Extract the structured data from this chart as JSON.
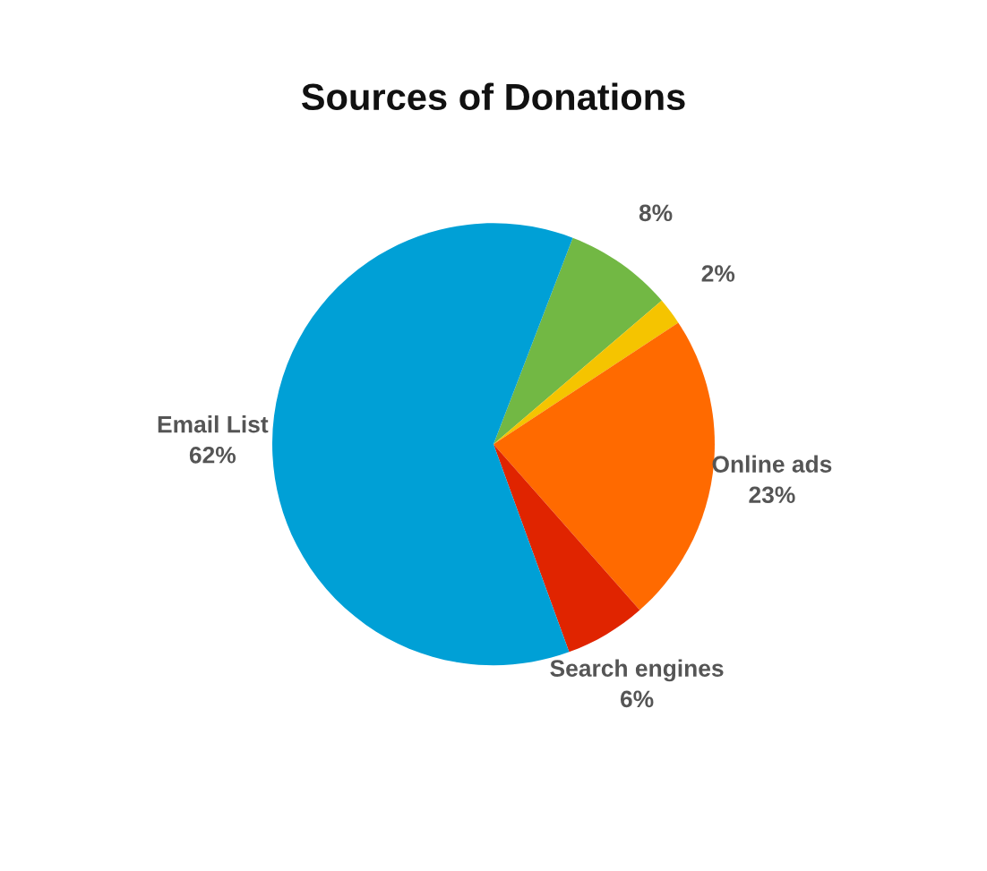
{
  "chart_data": {
    "type": "pie",
    "title": "Sources of Donations",
    "categories": [
      null,
      null,
      "Online ads",
      "Search engines",
      "Email List"
    ],
    "values": [
      8,
      2,
      23,
      6,
      62
    ],
    "value_labels": [
      "8%",
      "2%",
      "23%",
      "6%",
      "62%"
    ],
    "colors": [
      "#72b844",
      "#f5c400",
      "#ff6a00",
      "#e02400",
      "#00a0d6"
    ],
    "legend": false
  }
}
